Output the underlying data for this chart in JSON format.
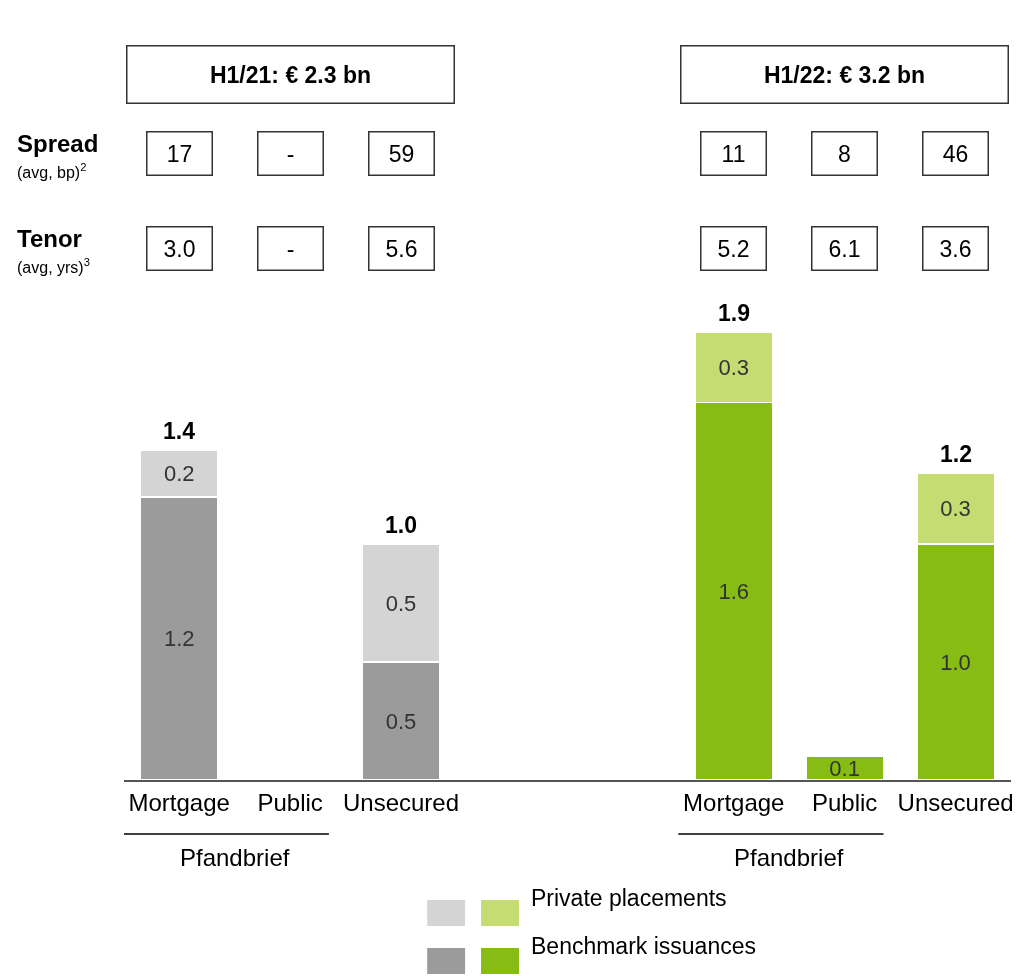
{
  "chart_data": {
    "type": "bar",
    "stacked": true,
    "legend": "bottom",
    "categories": [
      "Mortgage",
      "Public",
      "Unsecured",
      null,
      null,
      "Mortgage",
      "Public",
      "Unsecured"
    ],
    "series": [
      {
        "name": "Benchmark issuances",
        "colors": [
          "#9b9b9b",
          "#9b9b9b",
          "#9b9b9b",
          "#9b9b9b",
          "#9b9b9b",
          "#86bc14",
          "#86bc14",
          "#86bc14"
        ],
        "values": [
          1.2,
          null,
          0.5,
          null,
          null,
          1.6,
          0.1,
          1.0
        ],
        "value_labels": [
          "1.2",
          null,
          "0.5",
          null,
          null,
          "1.6",
          "0.1",
          "1.0"
        ]
      },
      {
        "name": "Private placements",
        "colors": [
          "#d4d4d4",
          "#d4d4d4",
          "#d4d4d4",
          "#d4d4d4",
          "#d4d4d4",
          "#c5dc73",
          "#c5dc73",
          "#c5dc73"
        ],
        "values": [
          0.2,
          null,
          0.5,
          null,
          null,
          0.3,
          null,
          0.3
        ],
        "value_labels": [
          "0.2",
          null,
          "0.5",
          null,
          null,
          "0.3",
          null,
          "0.3"
        ]
      }
    ],
    "totals": [
      "1.4",
      null,
      "1.0",
      null,
      null,
      "1.9",
      null,
      "1.2"
    ],
    "annotations": [
      "H1/21: € 2.3 bn",
      "H1/22: € 3.2 bn",
      "Spread",
      "(avg, bp)$^{2}$",
      "Tenor",
      "(avg, yrs)$^{3}$",
      "17",
      "-",
      "59",
      "11",
      "8",
      "46",
      "3.0",
      "-",
      "5.6",
      "5.2",
      "6.1",
      "3.6",
      "Pfandbrief",
      "Pfandbrief"
    ]
  }
}
